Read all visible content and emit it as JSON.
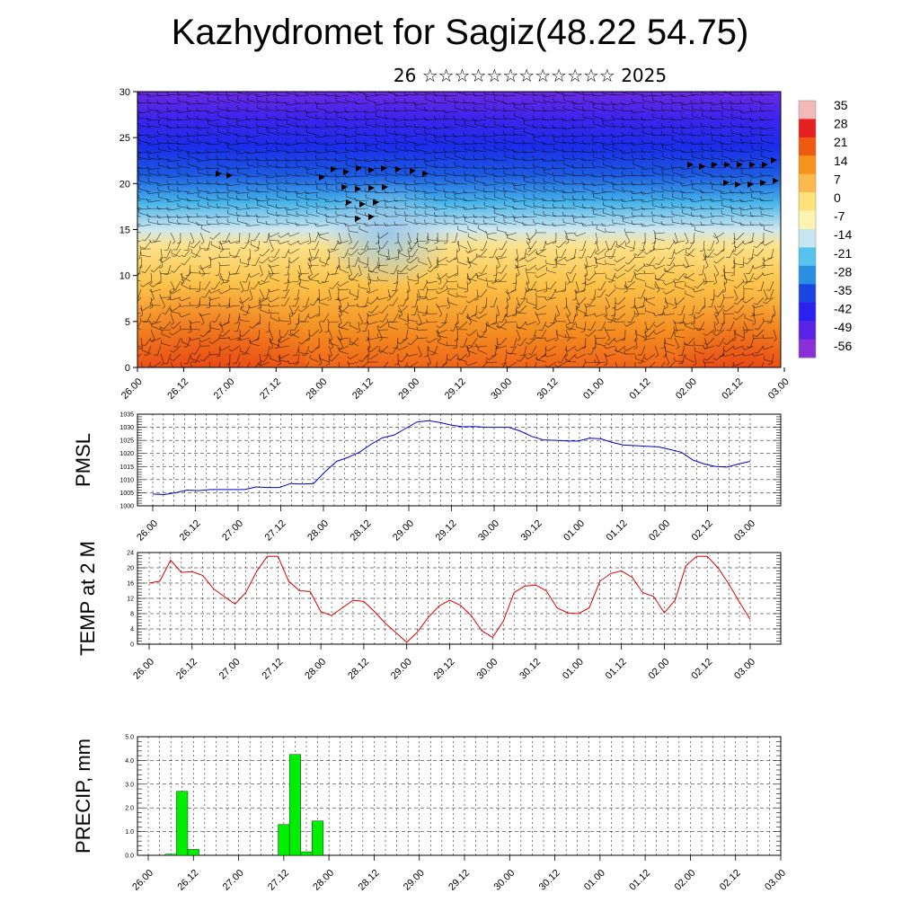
{
  "title": "Kazhydromet for Sagiz(48.22 54.75)",
  "subtitle": "26 ☆☆☆☆☆☆☆☆☆☆☆☆ 2025",
  "time_labels": [
    "26.00",
    "26.12",
    "27.00",
    "27.12",
    "28.00",
    "28.12",
    "29.00",
    "29.12",
    "30.00",
    "30.12",
    "01.00",
    "01.12",
    "02.00",
    "02.12",
    "03.00"
  ],
  "colorbar": {
    "labels": [
      "35",
      "28",
      "21",
      "14",
      "7",
      "0",
      "-7",
      "-14",
      "-21",
      "-28",
      "-35",
      "-42",
      "-49",
      "-56"
    ],
    "colors": [
      "#f3b8b8",
      "#e62020",
      "#f05a10",
      "#f7941d",
      "#fdb94e",
      "#fbe27a",
      "#fdf3b0",
      "#c7e6f2",
      "#55c3ee",
      "#2a8fe0",
      "#1a46e0",
      "#2a20f0",
      "#5a24e6",
      "#8a30d8"
    ]
  },
  "chart_data": [
    {
      "type": "heatmap",
      "name": "height-time-section",
      "title": "",
      "xlabel": "",
      "ylabel": "",
      "x": [
        "26.00",
        "26.12",
        "27.00",
        "27.12",
        "28.00",
        "28.12",
        "29.00",
        "29.12",
        "30.00",
        "30.12",
        "01.00",
        "01.12",
        "02.00",
        "02.12",
        "03.00"
      ],
      "yticks": [
        0,
        5,
        10,
        15,
        20,
        25,
        30
      ],
      "ylim": [
        0,
        30
      ],
      "grid": false,
      "legend": "colorbar right"
    },
    {
      "type": "line",
      "name": "pmsl",
      "ylabel": "PMSL",
      "ylim": [
        1000,
        1035
      ],
      "yticks": [
        1000,
        1005,
        1010,
        1015,
        1020,
        1025,
        1030,
        1035
      ],
      "xticks": [
        "26.00",
        "26.12",
        "27.00",
        "27.12",
        "28.00",
        "28.12",
        "29.00",
        "29.12",
        "30.00",
        "30.12",
        "01.00",
        "01.12",
        "02.00",
        "02.12",
        "03.00"
      ],
      "color": "#0000cc",
      "grid": true,
      "values": [
        1004.5,
        1004.3,
        1005.0,
        1006.0,
        1005.8,
        1006.2,
        1006.2,
        1006.2,
        1006.2,
        1007.2,
        1007.0,
        1007.0,
        1008.5,
        1008.3,
        1008.5,
        1013.0,
        1017.0,
        1018.5,
        1020.5,
        1023.5,
        1026.0,
        1027.0,
        1029.5,
        1032.0,
        1032.5,
        1031.8,
        1030.8,
        1030.2,
        1030.3,
        1030.0,
        1030.0,
        1030.0,
        1028.5,
        1026.5,
        1025.2,
        1025.0,
        1024.8,
        1024.7,
        1025.8,
        1025.6,
        1024.2,
        1023.2,
        1023.0,
        1022.7,
        1022.5,
        1021.5,
        1020.5,
        1017.5,
        1016.0,
        1015.0,
        1014.8,
        1016.0,
        1017.0
      ]
    },
    {
      "type": "line",
      "name": "temp-2m",
      "ylabel": "TEMP at 2 M",
      "ylim": [
        0,
        24
      ],
      "yticks": [
        0,
        4,
        8,
        12,
        16,
        20,
        24
      ],
      "xticks": [
        "26.00",
        "26.12",
        "27.00",
        "27.12",
        "28.00",
        "28.12",
        "29.00",
        "29.12",
        "30.00",
        "30.12",
        "01.00",
        "01.12",
        "02.00",
        "02.12",
        "03.00"
      ],
      "color": "#dd0000",
      "grid": true,
      "values": [
        16.0,
        16.5,
        22.0,
        18.8,
        19.0,
        18.0,
        14.5,
        12.5,
        10.5,
        13.5,
        19.0,
        23.0,
        23.0,
        16.5,
        14.0,
        13.8,
        8.5,
        7.5,
        9.5,
        11.5,
        11.2,
        8.5,
        5.5,
        3.0,
        0.5,
        3.2,
        7.0,
        10.0,
        11.5,
        10.2,
        7.5,
        3.5,
        1.8,
        6.0,
        13.5,
        15.2,
        15.5,
        14.0,
        9.5,
        8.2,
        8.0,
        9.5,
        16.5,
        18.5,
        19.2,
        17.5,
        13.5,
        12.5,
        8.2,
        11.5,
        20.5,
        23.0,
        23.0,
        20.0,
        15.8,
        11.0,
        6.5
      ]
    },
    {
      "type": "bar",
      "name": "precip",
      "ylabel": "PRECIP, mm",
      "ylim": [
        0,
        5
      ],
      "yticks": [
        "0.0",
        "1.0",
        "2.0",
        "3.0",
        "4.0",
        "5.0"
      ],
      "xticks": [
        "26.00",
        "26.12",
        "27.00",
        "27.12",
        "28.00",
        "28.12",
        "29.00",
        "29.12",
        "30.00",
        "30.12",
        "01.00",
        "01.12",
        "02.00",
        "02.12",
        "03.00"
      ],
      "color": "#00ee00",
      "grid": true,
      "values": [
        0,
        0,
        0.05,
        2.7,
        0.25,
        0,
        0,
        0,
        0,
        0,
        0,
        0,
        1.3,
        4.25,
        0.15,
        1.45,
        0,
        0,
        0,
        0,
        0,
        0,
        0,
        0,
        0,
        0,
        0,
        0,
        0,
        0,
        0,
        0,
        0,
        0,
        0,
        0,
        0,
        0,
        0,
        0,
        0,
        0,
        0,
        0,
        0,
        0,
        0,
        0,
        0,
        0,
        0,
        0,
        0,
        0,
        0,
        0,
        0
      ]
    }
  ]
}
